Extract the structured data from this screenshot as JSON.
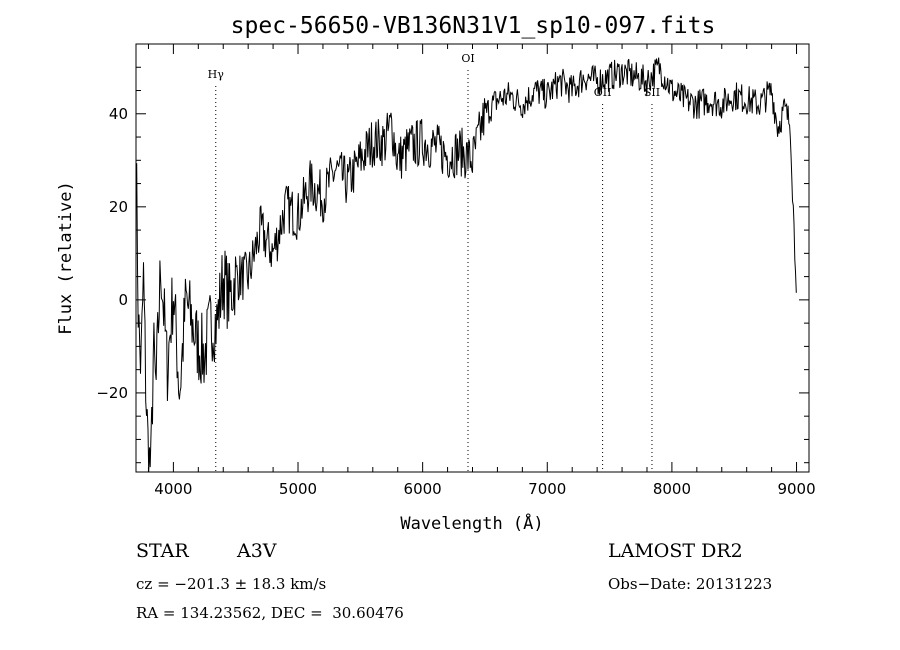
{
  "chart_data": {
    "type": "line",
    "title": "spec-56650-VB136N31V1_sp10-097.fits",
    "xlabel": "Wavelength (Å)",
    "ylabel": "Flux (relative)",
    "xlim": [
      3700,
      9100
    ],
    "ylim": [
      -37,
      55
    ],
    "x_ticks": [
      4000,
      5000,
      6000,
      7000,
      8000,
      9000
    ],
    "y_ticks": [
      -20,
      0,
      20,
      40
    ],
    "x_tick_labels": [
      "4000",
      "5000",
      "6000",
      "7000",
      "8000",
      "9000"
    ],
    "y_tick_labels": [
      "−20",
      "0",
      "20",
      "40"
    ],
    "grid": false,
    "series": [
      {
        "x": [
          3700,
          3720,
          3740,
          3760,
          3780,
          3800,
          3820,
          3840,
          3860,
          3880,
          3900,
          3950,
          4000,
          4050,
          4100,
          4150,
          4200,
          4250,
          4300,
          4350,
          4400,
          4450,
          4500,
          4600,
          4700,
          4800,
          4900,
          5000,
          5100,
          5200,
          5300,
          5400,
          5500,
          5600,
          5700,
          5750,
          5800,
          5900,
          6000,
          6100,
          6200,
          6300,
          6400,
          6450,
          6500,
          6600,
          6700,
          6800,
          6900,
          7000,
          7100,
          7200,
          7300,
          7400,
          7500,
          7600,
          7700,
          7800,
          7900,
          8000,
          8100,
          8200,
          8300,
          8400,
          8500,
          8600,
          8700,
          8800,
          8850,
          8900,
          8950,
          9000
        ],
        "y": [
          34,
          -5,
          -15,
          5,
          -20,
          -34,
          -36,
          -10,
          -20,
          -5,
          8,
          -15,
          2,
          -20,
          0,
          -5,
          -10,
          -12,
          -5,
          -5,
          5,
          0,
          5,
          5,
          15,
          10,
          20,
          18,
          25,
          22,
          28,
          25,
          30,
          34,
          34,
          38,
          30,
          33,
          34,
          33,
          31,
          32,
          30,
          35,
          40,
          43,
          44,
          42,
          45,
          44,
          47,
          45,
          48,
          47,
          48,
          49,
          48,
          47,
          50,
          45,
          43,
          42,
          43,
          42,
          44,
          43,
          42,
          45,
          37,
          41,
          38,
          0
        ],
        "noise": 12,
        "seed": 7
      }
    ],
    "annotations": [
      {
        "label": "Hγ",
        "x": 4340
      },
      {
        "label": "OI",
        "x": 6364
      },
      {
        "label": "OII",
        "x": 7444
      },
      {
        "label": "SII",
        "x": 7840
      }
    ]
  },
  "info": {
    "object_class": "STAR",
    "spectral_type": "A3V",
    "survey": "LAMOST DR2",
    "redshift": "cz = −201.3 ± 18.3 km/s",
    "obs_date": "Obs−Date: 20131223",
    "coords": "RA = 134.23562, DEC =  30.60476"
  }
}
